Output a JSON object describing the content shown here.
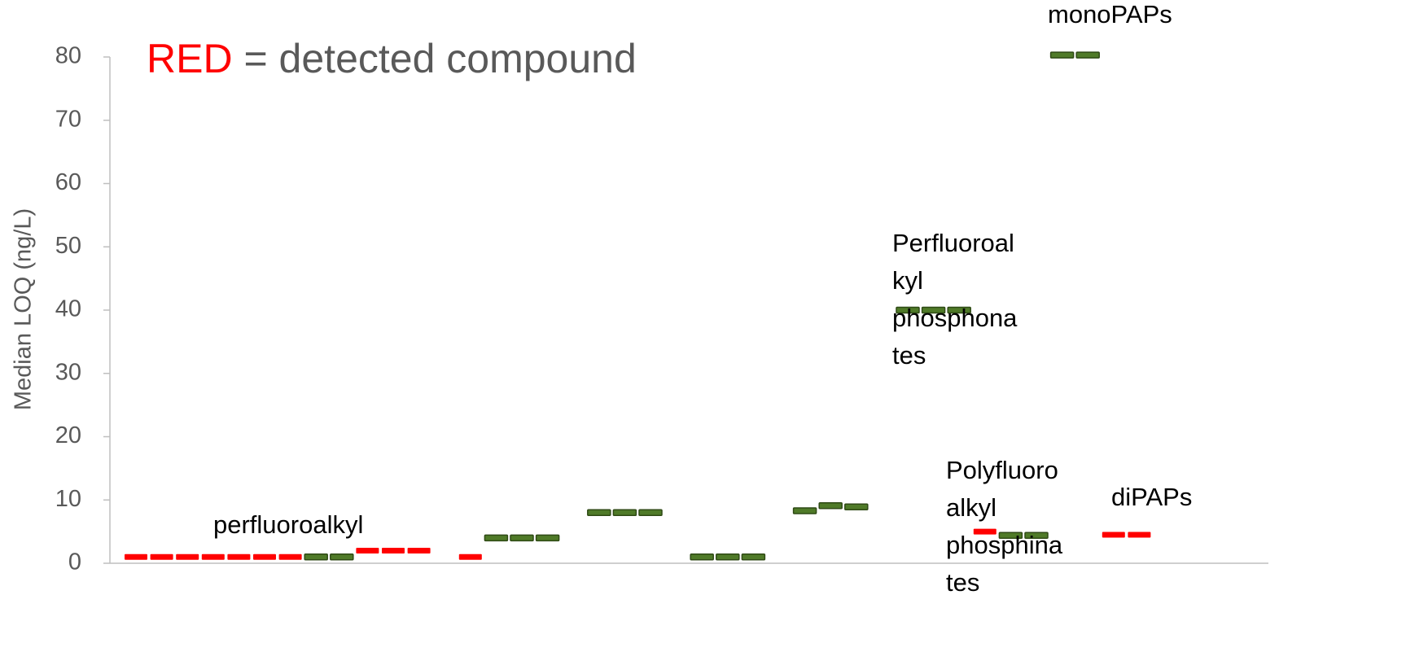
{
  "chart_data": {
    "type": "marker",
    "y_label": "Median LOQ (ng/L)",
    "title_parts": [
      {
        "text": "RED",
        "color": "#ff0000"
      },
      {
        "text": " = detected compound",
        "color": "#595959"
      }
    ],
    "categories": [
      null,
      null,
      null,
      null,
      null,
      null,
      null,
      null,
      null,
      null,
      null,
      null,
      null,
      null,
      null,
      null,
      null,
      null,
      null,
      null,
      null,
      null,
      null,
      null,
      null,
      null,
      null,
      null,
      null,
      null,
      null,
      null,
      null,
      null,
      null,
      null,
      null,
      null,
      null,
      null
    ],
    "series": [
      {
        "color": "#ff0000",
        "values": [
          1,
          1,
          1,
          1,
          1,
          1,
          1,
          null,
          null,
          2,
          2,
          2,
          null,
          1,
          null,
          null,
          null,
          null,
          null,
          null,
          null,
          null,
          null,
          null,
          null,
          null,
          null,
          null,
          null,
          null,
          null,
          null,
          null,
          5,
          null,
          null,
          null,
          null,
          4.5,
          4.5
        ]
      },
      {
        "color": "#4f7a28",
        "values": [
          null,
          null,
          null,
          null,
          null,
          null,
          null,
          1,
          1,
          null,
          null,
          null,
          null,
          null,
          4,
          4,
          4,
          null,
          8,
          8,
          8,
          null,
          1,
          1,
          1,
          null,
          8.3,
          9.1,
          8.9,
          null,
          40,
          40,
          40,
          null,
          4.4,
          4.4,
          80.3,
          80.3,
          null,
          null
        ]
      }
    ],
    "ylim": [
      0,
      80
    ],
    "yticks": [
      0,
      10,
      20,
      30,
      40,
      50,
      60,
      70,
      80
    ],
    "annotations": [
      {
        "lines": [
          "perfluoroalkyl"
        ]
      },
      {
        "lines": [
          "Perfluoroal",
          "kyl",
          "phosphona",
          "tes"
        ]
      },
      {
        "lines": [
          "monoPAPs"
        ]
      },
      {
        "lines": [
          "Polyfluoro",
          "alkyl",
          "phosphina",
          "tes"
        ]
      },
      {
        "lines": [
          "diPAPs"
        ]
      }
    ]
  }
}
